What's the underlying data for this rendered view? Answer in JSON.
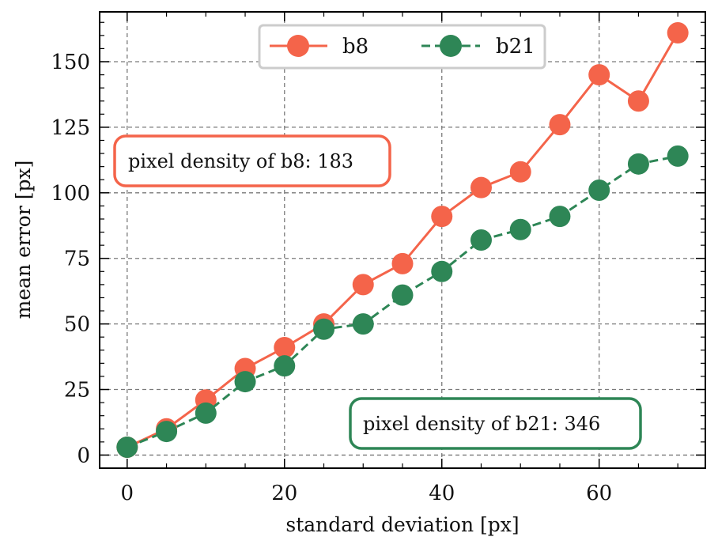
{
  "chart_data": {
    "type": "line",
    "xlabel": "standard deviation [px]",
    "ylabel": "mean error [px]",
    "xlim": [
      -3.5,
      73.5
    ],
    "ylim": [
      -5,
      169
    ],
    "xticks": [
      0,
      20,
      40,
      60
    ],
    "yticks": [
      0,
      25,
      50,
      75,
      100,
      125,
      150
    ],
    "grid": true,
    "legend_position": "top-center",
    "x": [
      0,
      5,
      10,
      15,
      20,
      25,
      30,
      35,
      40,
      45,
      50,
      55,
      60,
      65,
      70
    ],
    "series": [
      {
        "name": "b8",
        "color": "#f4644a",
        "line_style": "solid",
        "marker": "circle",
        "values": [
          3,
          10,
          21,
          33,
          41,
          50,
          65,
          73,
          91,
          102,
          108,
          126,
          145,
          135,
          161
        ]
      },
      {
        "name": "b21",
        "color": "#2e8656",
        "line_style": "dashed",
        "marker": "circle",
        "values": [
          3,
          9,
          16,
          28,
          34,
          48,
          50,
          61,
          70,
          82,
          86,
          91,
          101,
          111,
          114
        ]
      }
    ],
    "annotations": [
      {
        "text": "pixel density of b8: 183",
        "color": "#f4644a"
      },
      {
        "text": "pixel density of b21: 346",
        "color": "#2e8656"
      }
    ]
  }
}
